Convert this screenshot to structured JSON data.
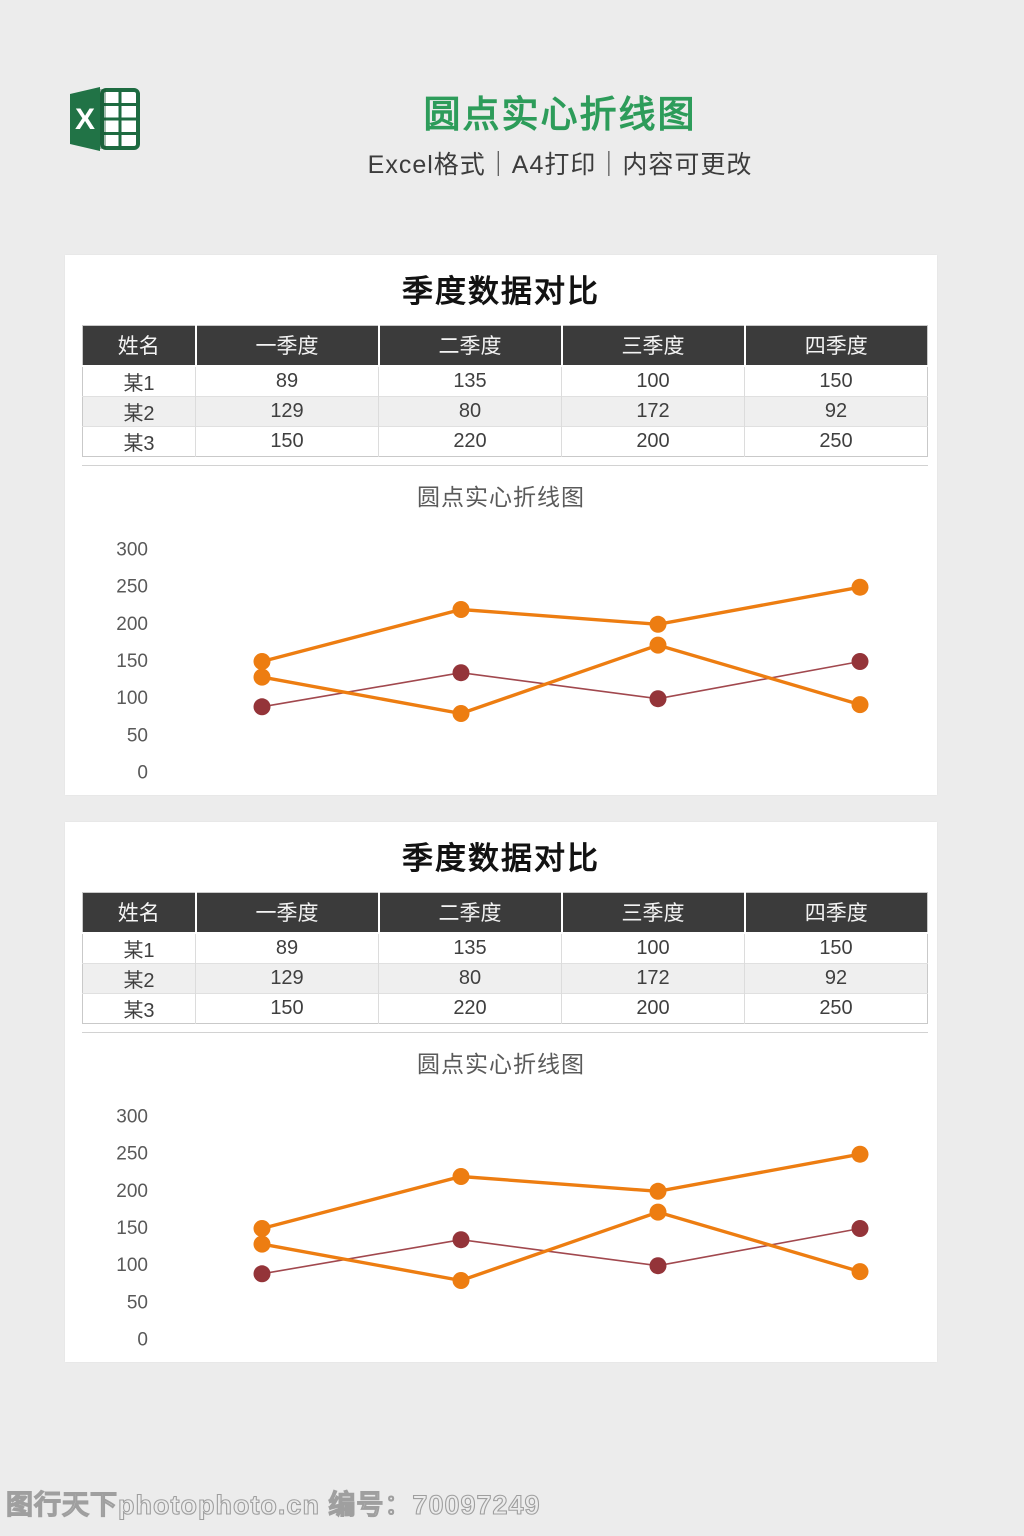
{
  "colors": {
    "page_bg": "#ececec",
    "brand_green": "#2d9c5a",
    "logo_green": "#217346",
    "logo_green_dark": "#1e6b41",
    "table_header_bg": "#3b3b3b",
    "orange": "#ed7d11",
    "maroon": "#9c3a40",
    "axis_text": "#595959"
  },
  "header": {
    "logo_icon": "excel-logo",
    "title": "圆点实心折线图",
    "subtitle": "Excel格式｜A4打印｜内容可更改"
  },
  "panel": {
    "title": "季度数据对比",
    "chart_title": "圆点实心折线图",
    "table": {
      "headers": [
        "姓名",
        "一季度",
        "二季度",
        "三季度",
        "四季度"
      ],
      "rows": [
        [
          "某1",
          "89",
          "135",
          "100",
          "150"
        ],
        [
          "某2",
          "129",
          "80",
          "172",
          "92"
        ],
        [
          "某3",
          "150",
          "220",
          "200",
          "250"
        ]
      ]
    }
  },
  "chart_data": {
    "type": "line",
    "title": "圆点实心折线图",
    "duplicated_panels": 2,
    "categories": [
      "一季度",
      "二季度",
      "三季度",
      "四季度"
    ],
    "series": [
      {
        "name": "某1",
        "values": [
          89,
          135,
          100,
          150
        ],
        "line_color": "#a1484e",
        "marker_color": "#943439",
        "line_width": 1.6,
        "marker_radius": 8.5
      },
      {
        "name": "某2",
        "values": [
          129,
          80,
          172,
          92
        ],
        "line_color": "#ed7d11",
        "marker_color": "#ed7d11",
        "line_width": 3.4,
        "marker_radius": 8.5
      },
      {
        "name": "某3",
        "values": [
          150,
          220,
          200,
          250
        ],
        "line_color": "#ed7d11",
        "marker_color": "#ed7d11",
        "line_width": 3.4,
        "marker_radius": 8.5
      }
    ],
    "ylim": [
      0,
      300
    ],
    "yticks": [
      0,
      50,
      100,
      150,
      200,
      250,
      300
    ],
    "x_axis_labels_shown": false,
    "grid": false,
    "legend": "none"
  },
  "watermark": {
    "text": "图行天下photophoto.cn 编号：70097249"
  }
}
